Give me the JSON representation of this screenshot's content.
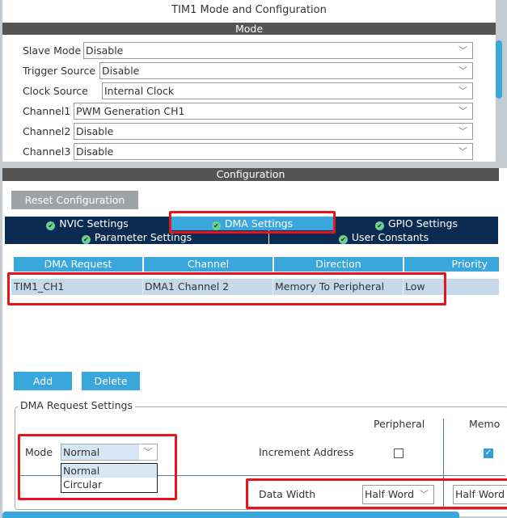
{
  "window": {
    "title": "TIM1 Mode and Configuration"
  },
  "mode": {
    "header": "Mode",
    "rows": [
      {
        "label": "Slave Mode",
        "value": "Disable"
      },
      {
        "label": "Trigger Source",
        "value": "Disable"
      },
      {
        "label": "Clock Source",
        "value": "Internal Clock"
      },
      {
        "label": "Channel1",
        "value": "PWM Generation CH1"
      },
      {
        "label": "Channel2",
        "value": "Disable"
      },
      {
        "label": "Channel3",
        "value": "Disable"
      }
    ]
  },
  "config": {
    "header": "Configuration",
    "reset_label": "Reset Configuration",
    "tabs": [
      "NVIC Settings",
      "DMA Settings",
      "GPIO Settings",
      "Parameter Settings",
      "User Constants"
    ],
    "active_tab": "DMA Settings"
  },
  "dma_table": {
    "columns": [
      "DMA Request",
      "Channel",
      "Direction",
      "Priority"
    ],
    "rows": [
      [
        "TIM1_CH1",
        "DMA1 Channel 2",
        "Memory To Peripheral",
        "Low"
      ]
    ]
  },
  "buttons": {
    "add": "Add",
    "delete": "Delete"
  },
  "dma_settings": {
    "legend": "DMA Request Settings",
    "peripheral_header": "Peripheral",
    "memory_header": "Memo",
    "mode_label": "Mode",
    "mode_value": "Normal",
    "mode_options": [
      "Normal",
      "Circular"
    ],
    "increment_label": "Increment Address",
    "peripheral_increment": false,
    "memory_increment": true,
    "data_width_label": "Data Width",
    "peripheral_width": "Half Word",
    "memory_width": "Half Word"
  },
  "colors": {
    "accent": "#3aa7dc",
    "tab_bg": "#0c2b52",
    "highlight": "#e8141c"
  }
}
